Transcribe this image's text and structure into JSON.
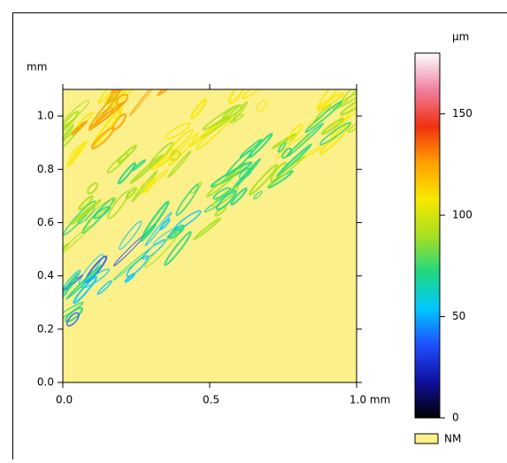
{
  "chart_data": {
    "type": "heatmap",
    "ylabel": "mm",
    "xlim": [
      0,
      1.0
    ],
    "xticks": [
      {
        "value": 0,
        "label": "0.0"
      },
      0.5,
      {
        "value": 1.0,
        "label": "1.0 mm"
      }
    ],
    "ylim": [
      0,
      1.1
    ],
    "yticks": [
      {
        "value": 0,
        "label": "0.0"
      },
      0.2,
      0.4,
      0.6,
      0.8,
      {
        "value": 1.0,
        "label": "1.0"
      }
    ],
    "colorbar": {
      "label": "µm",
      "lim": [
        0,
        180
      ],
      "ticks": [
        0,
        50,
        100,
        150
      ],
      "colormap": [
        "#000000",
        "#1010a0",
        "#1f4fff",
        "#00c8ff",
        "#20d880",
        "#a8e020",
        "#f8e800",
        "#ffa000",
        "#f03010",
        "#f080a0",
        "#ffffff"
      ]
    },
    "nm_label": "NM",
    "nm_color": "#fbf08a"
  }
}
